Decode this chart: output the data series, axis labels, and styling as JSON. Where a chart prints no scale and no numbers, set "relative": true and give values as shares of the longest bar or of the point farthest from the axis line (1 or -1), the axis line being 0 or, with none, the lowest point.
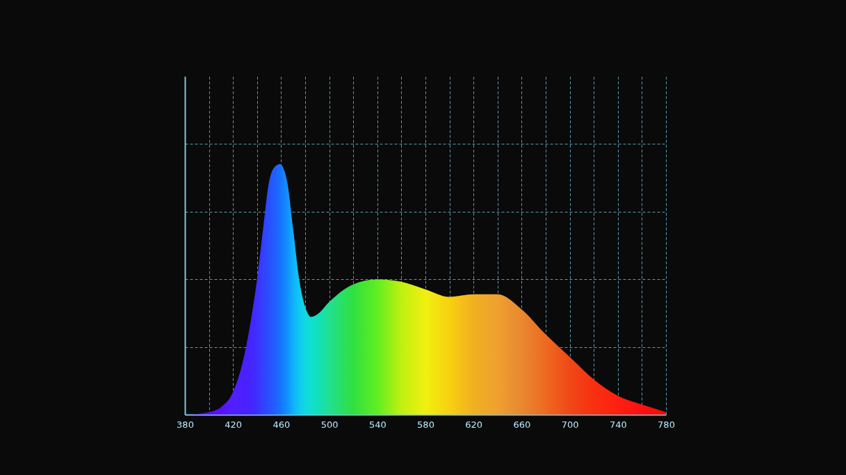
{
  "chart_data": {
    "type": "area",
    "relative": true,
    "grid": true,
    "x": [
      380,
      400,
      410,
      420,
      430,
      435,
      440,
      445,
      450,
      455,
      459,
      465,
      470,
      475,
      480,
      485,
      490,
      500,
      520,
      540,
      560,
      580,
      600,
      620,
      640,
      660,
      680,
      700,
      720,
      740,
      760,
      780
    ],
    "series": [
      {
        "values": [
          0,
          0.01,
          0.03,
          0.09,
          0.25,
          0.38,
          0.54,
          0.74,
          0.93,
          0.99,
          1,
          0.93,
          0.74,
          0.54,
          0.43,
          0.39,
          0.4,
          0.45,
          0.52,
          0.54,
          0.53,
          0.5,
          0.47,
          0.48,
          0.48,
          0.42,
          0.32,
          0.23,
          0.14,
          0.075,
          0.04,
          0.01
        ],
        "colors": [
          "#5a00d0",
          "#5a10ff",
          "#5a10ff",
          "#5020ff",
          "#4a20ff",
          "#4525ff",
          "#3c30ff",
          "#3540ff",
          "#2850ff",
          "#2060ff",
          "#1870ff",
          "#1090ff",
          "#10b0ff",
          "#10c8f0",
          "#10d8e0",
          "#10e0d0",
          "#10e0c0",
          "#20e090",
          "#30e040",
          "#60ee20",
          "#c0f010",
          "#f0f010",
          "#f8d010",
          "#f0b020",
          "#f0a030",
          "#e88830",
          "#ee6a20",
          "#f04818",
          "#f83010",
          "#ff2010",
          "#ff1010",
          "#ff0808"
        ]
      }
    ],
    "xlim": [
      380,
      780
    ],
    "xticks": [
      380,
      {
        "value": 400,
        "label": null
      },
      420,
      {
        "value": 440,
        "label": null
      },
      460,
      {
        "value": 480,
        "label": null
      },
      500,
      {
        "value": 520,
        "label": null
      },
      540,
      {
        "value": 560,
        "label": null
      },
      580,
      {
        "value": 600,
        "label": null
      },
      620,
      {
        "value": 640,
        "label": null
      },
      660,
      {
        "value": 680,
        "label": null
      },
      700,
      {
        "value": 720,
        "label": null
      },
      740,
      {
        "value": 760,
        "label": null
      },
      780
    ]
  }
}
